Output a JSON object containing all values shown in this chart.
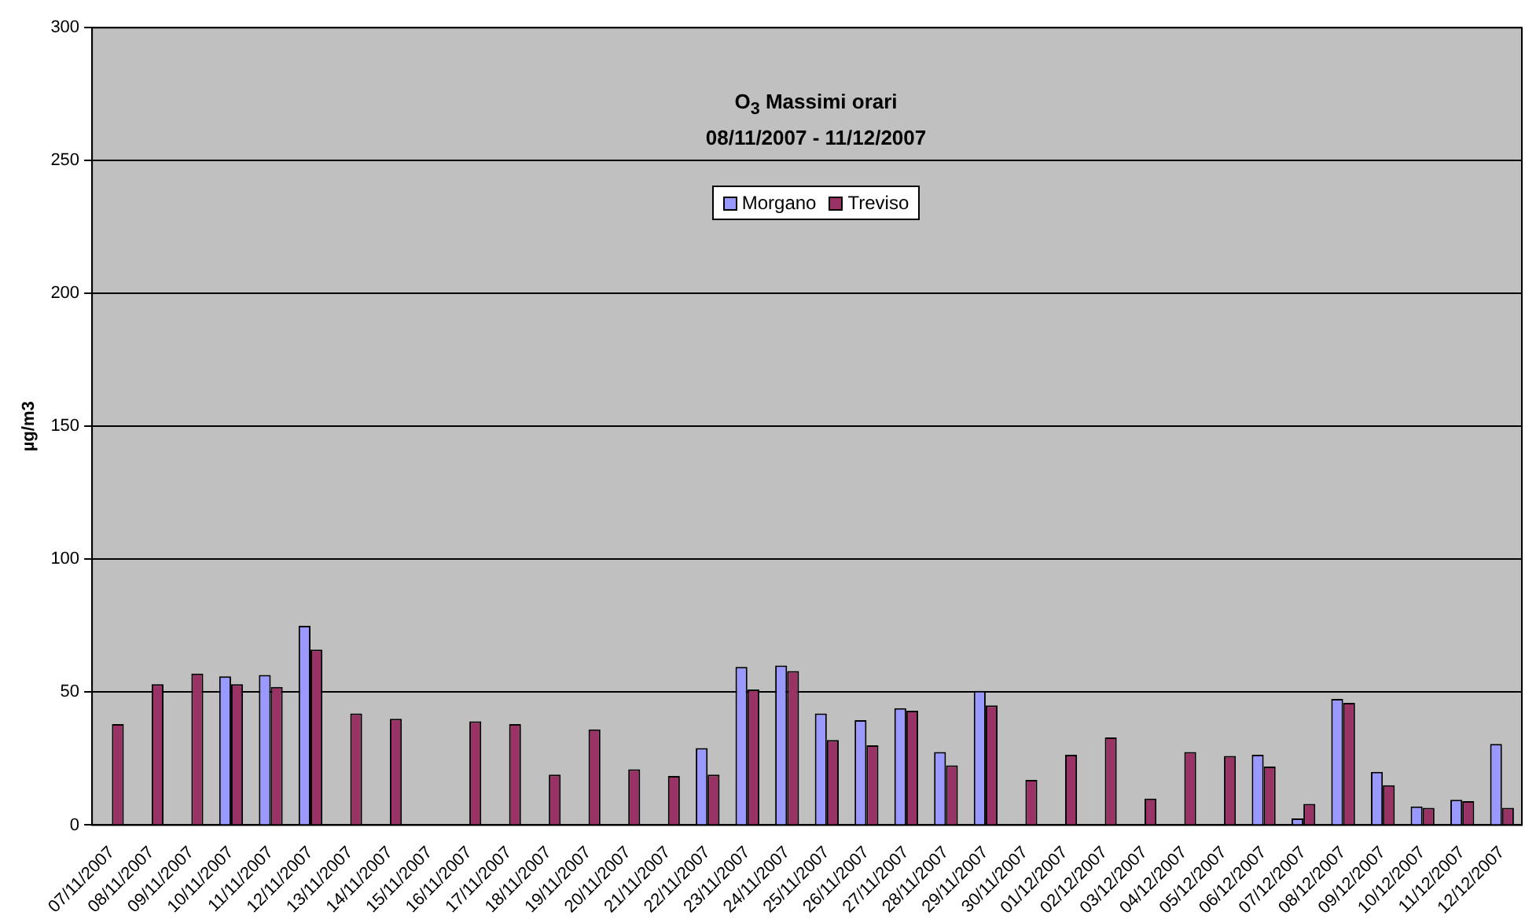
{
  "chart_data": {
    "type": "bar",
    "title": "O$_{3}$ Massimi orari",
    "subtitle": "08/11/2007 - 11/12/2007",
    "ylabel": "µg/m3",
    "categories": [
      "07/11/2007",
      "08/11/2007",
      "09/11/2007",
      "10/11/2007",
      "11/11/2007",
      "12/11/2007",
      "13/11/2007",
      "14/11/2007",
      "15/11/2007",
      "16/11/2007",
      "17/11/2007",
      "18/11/2007",
      "19/11/2007",
      "20/11/2007",
      "21/11/2007",
      "22/11/2007",
      "23/11/2007",
      "24/11/2007",
      "25/11/2007",
      "26/11/2007",
      "27/11/2007",
      "28/11/2007",
      "29/11/2007",
      "30/11/2007",
      "01/12/2007",
      "02/12/2007",
      "03/12/2007",
      "04/12/2007",
      "05/12/2007",
      "06/12/2007",
      "07/12/2007",
      "08/12/2007",
      "09/12/2007",
      "10/12/2007",
      "11/12/2007",
      "12/12/2007"
    ],
    "series": [
      {
        "name": "Morgano",
        "color": "#9999ff",
        "values": [
          null,
          null,
          null,
          56,
          56.5,
          75,
          null,
          null,
          null,
          null,
          null,
          null,
          null,
          null,
          null,
          29,
          59.5,
          60,
          42,
          39.5,
          44,
          27.5,
          50.5,
          null,
          null,
          null,
          null,
          null,
          null,
          26.5,
          2.5,
          47.5,
          20,
          7,
          9.5,
          30.5
        ]
      },
      {
        "name": "Treviso",
        "color": "#993366",
        "values": [
          38,
          53,
          57,
          53,
          52,
          66,
          42,
          40,
          null,
          39,
          38,
          19,
          36,
          21,
          18.5,
          19,
          51,
          58,
          32,
          30,
          43,
          22.5,
          45,
          17,
          26.5,
          33,
          10,
          27.5,
          26,
          22,
          8,
          46,
          15,
          6.5,
          9,
          6.5
        ]
      }
    ],
    "ylim": [
      0,
      300
    ],
    "yticks": [
      0,
      50,
      100,
      150,
      200,
      250,
      300
    ],
    "grid": "y",
    "legend": "top"
  }
}
